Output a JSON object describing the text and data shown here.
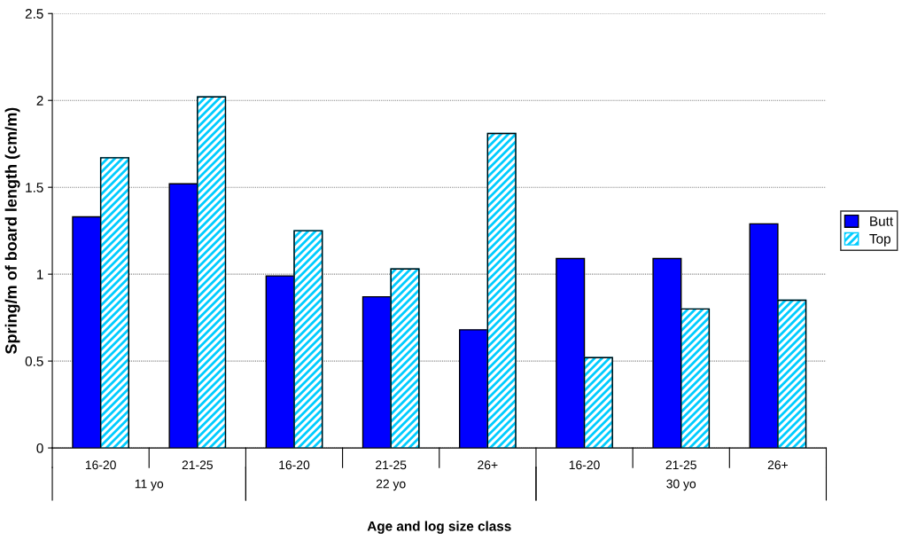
{
  "chart_data": {
    "type": "bar",
    "xlabel": "Age and log size class",
    "ylabel": "Spring/m of board length (cm/m)",
    "categories": [
      "16-20",
      "21-25",
      "16-20",
      "21-25",
      "26+",
      "16-20",
      "21-25",
      "26+"
    ],
    "annotations": [
      "11 yo",
      "22 yo",
      "30 yo"
    ],
    "series": [
      {
        "name": "Butt",
        "color": "#0000ff",
        "values": [
          1.33,
          1.52,
          0.99,
          0.87,
          0.68,
          1.09,
          1.09,
          1.29
        ]
      },
      {
        "name": "Top",
        "color": "#00ccff",
        "values": [
          1.67,
          2.02,
          1.25,
          1.03,
          1.81,
          0.52,
          0.8,
          0.85
        ]
      }
    ],
    "ylim": [
      0,
      2.5
    ],
    "yticks": [
      0,
      0.5,
      1,
      1.5,
      2,
      2.5
    ],
    "grid": "y",
    "legend": "right"
  }
}
